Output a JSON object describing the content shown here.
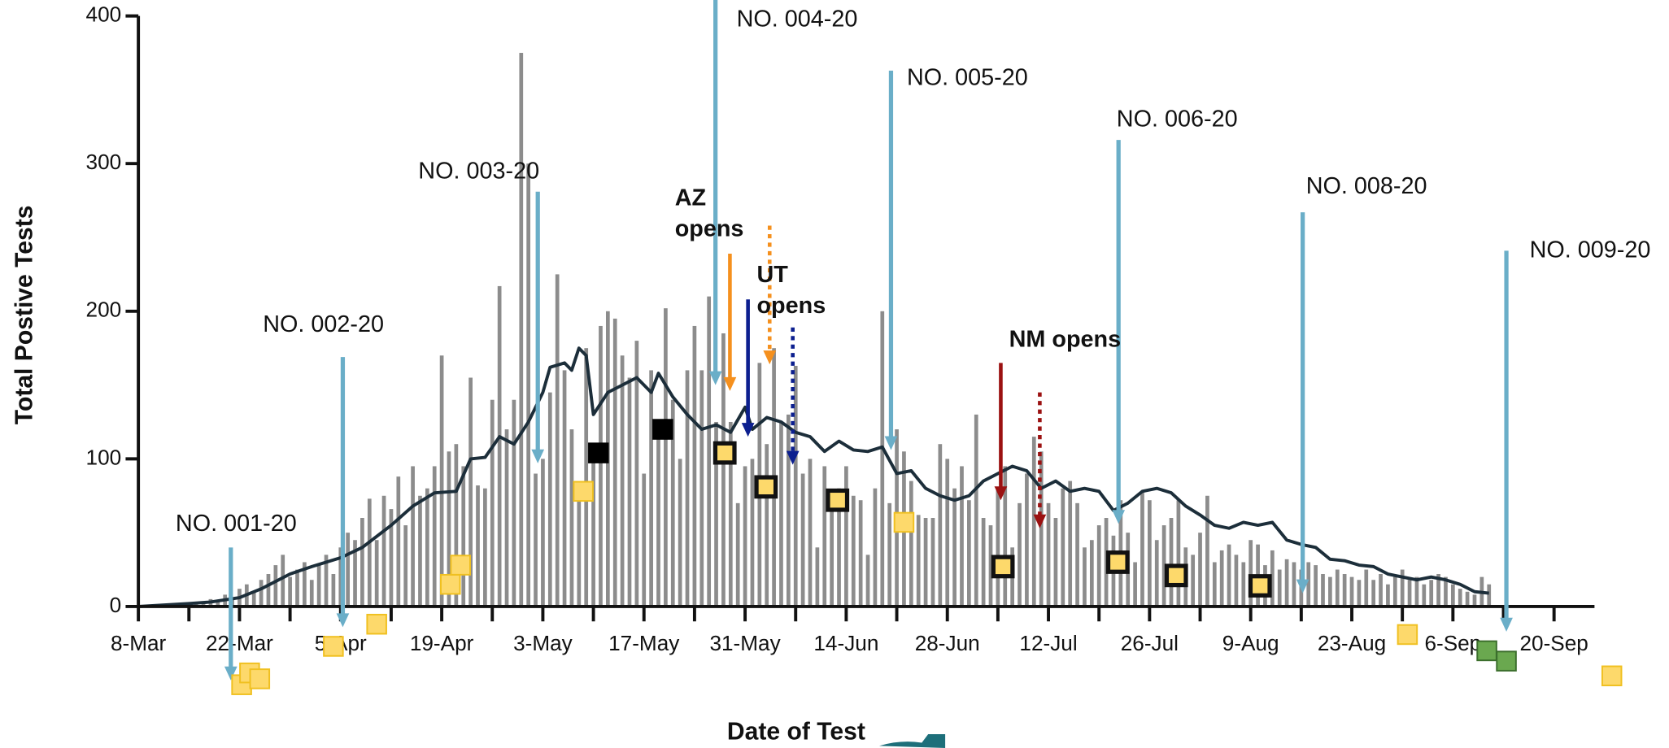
{
  "chart_data": {
    "type": "bar",
    "y_label": "Total Postive Tests",
    "x_label": "Date of Test",
    "xlim": [
      0,
      196
    ],
    "ylim": [
      0,
      400
    ],
    "yticks": [
      0,
      100,
      200,
      300,
      400
    ],
    "xticks": [
      {
        "value": 0,
        "label": "8-Mar"
      },
      {
        "value": 14,
        "label": "22-Mar"
      },
      {
        "value": 28,
        "label": "5-Apr"
      },
      {
        "value": 42,
        "label": "19-Apr"
      },
      {
        "value": 56,
        "label": "3-May"
      },
      {
        "value": 70,
        "label": "17-May"
      },
      {
        "value": 84,
        "label": "31-May"
      },
      {
        "value": 98,
        "label": "14-Jun"
      },
      {
        "value": 112,
        "label": "28-Jun"
      },
      {
        "value": 126,
        "label": "12-Jul"
      },
      {
        "value": 140,
        "label": "26-Jul"
      },
      {
        "value": 154,
        "label": "9-Aug"
      },
      {
        "value": 168,
        "label": "23-Aug"
      },
      {
        "value": 182,
        "label": "6-Sep"
      },
      {
        "value": 196,
        "label": "20-Sep"
      }
    ],
    "xminorticks": [
      7,
      21,
      35,
      49,
      63,
      77,
      91,
      105,
      119,
      133,
      147,
      161,
      175,
      189
    ],
    "bar_color": "#8c8c8c",
    "values": [
      0,
      0,
      1,
      0,
      1,
      2,
      1,
      2,
      3,
      2,
      5,
      4,
      8,
      6,
      12,
      15,
      10,
      18,
      22,
      28,
      35,
      20,
      25,
      30,
      18,
      28,
      35,
      22,
      40,
      50,
      45,
      60,
      73,
      45,
      75,
      66,
      88,
      55,
      95,
      75,
      80,
      95,
      170,
      105,
      110,
      95,
      155,
      82,
      80,
      140,
      217,
      120,
      140,
      375,
      300,
      90,
      100,
      145,
      225,
      160,
      120,
      80,
      175,
      110,
      190,
      200,
      195,
      170,
      155,
      180,
      90,
      160,
      120,
      202,
      140,
      100,
      160,
      190,
      160,
      210,
      125,
      185,
      125,
      70,
      95,
      100,
      165,
      110,
      175,
      125,
      130,
      163,
      90,
      100,
      40,
      95,
      78,
      80,
      95,
      75,
      72,
      35,
      80,
      200,
      70,
      120,
      105,
      85,
      62,
      60,
      60,
      110,
      100,
      80,
      95,
      72,
      130,
      60,
      55,
      80,
      95,
      40,
      70,
      90,
      115,
      105,
      70,
      60,
      80,
      85,
      70,
      40,
      45,
      55,
      60,
      48,
      72,
      50,
      30,
      78,
      72,
      45,
      55,
      60,
      72,
      40,
      35,
      50,
      75,
      30,
      38,
      42,
      35,
      30,
      45,
      42,
      28,
      38,
      25,
      32,
      30,
      25,
      30,
      28,
      22,
      20,
      25,
      22,
      20,
      18,
      25,
      18,
      22,
      15,
      20,
      25,
      18,
      20,
      15,
      18,
      22,
      20,
      15,
      12,
      10,
      8,
      20,
      15
    ],
    "line": {
      "color": "#1c2e3a",
      "x": [
        0,
        7,
        10,
        14,
        17,
        21,
        24,
        28,
        31,
        35,
        38,
        41,
        44,
        46,
        48,
        50,
        52,
        54,
        56,
        57,
        59,
        60,
        61,
        62,
        63,
        65,
        67,
        69,
        71,
        72,
        74,
        76,
        78,
        80,
        82,
        84,
        85,
        87,
        89,
        91,
        93,
        95,
        97,
        99,
        101,
        103,
        105,
        107,
        109,
        111,
        113,
        115,
        117,
        119,
        121,
        123,
        125,
        127,
        129,
        131,
        133,
        135,
        137,
        139,
        141,
        143,
        145,
        147,
        149,
        151,
        153,
        155,
        157,
        159,
        161,
        163,
        165,
        167,
        169,
        171,
        173,
        175,
        177,
        179,
        181,
        183,
        185,
        187
      ],
      "values": [
        0,
        2,
        3,
        6,
        12,
        22,
        27,
        33,
        40,
        55,
        68,
        77,
        78,
        100,
        101,
        115,
        110,
        125,
        145,
        162,
        165,
        160,
        175,
        170,
        130,
        145,
        150,
        155,
        145,
        158,
        142,
        130,
        120,
        123,
        118,
        135,
        120,
        128,
        125,
        118,
        115,
        105,
        112,
        106,
        105,
        108,
        90,
        92,
        80,
        75,
        72,
        75,
        85,
        90,
        95,
        92,
        80,
        85,
        78,
        80,
        78,
        65,
        70,
        78,
        80,
        77,
        68,
        62,
        55,
        53,
        57,
        55,
        57,
        45,
        42,
        40,
        32,
        31,
        28,
        27,
        22,
        20,
        18,
        20,
        18,
        15,
        10,
        9
      ]
    },
    "markers": [
      {
        "color": "#fdd96b",
        "edge": "#f0c020",
        "x": [
          14.3,
          15.4,
          16.8,
          27,
          33,
          43.2,
          44.6,
          61.6,
          106,
          175.7,
          204
        ],
        "values": [
          -53,
          -45,
          -49,
          -27,
          -12,
          15,
          28,
          78,
          57,
          -19,
          -47
        ]
      },
      {
        "color": "#000000",
        "edge": "#000000",
        "x": [
          63.7,
          72.6
        ],
        "values": [
          104,
          120
        ]
      },
      {
        "color": "#fdd96b",
        "edge": "#111111",
        "x": [
          81.2,
          86.9,
          96.8,
          119.7,
          135.6,
          143.7,
          155.3
        ],
        "values": [
          104,
          81,
          72,
          27,
          30,
          21,
          14
        ]
      },
      {
        "color": "#6aa84f",
        "edge": "#3b6e2c",
        "x": [
          186.7,
          189.4
        ],
        "values": [
          -30,
          -37
        ]
      }
    ],
    "annotations": [
      {
        "label": "NO. 001-20",
        "color": "#6aaec8",
        "arrows": [
          {
            "x": 12.8,
            "from": 40,
            "to": -50,
            "dashed": false
          }
        ]
      },
      {
        "label": "NO. 002-20",
        "color": "#6aaec8",
        "arrows": [
          {
            "x": 28.3,
            "from": 169,
            "to": -14,
            "dashed": false
          }
        ]
      },
      {
        "label": "NO. 003-20",
        "color": "#6aaec8",
        "arrows": [
          {
            "x": 55.3,
            "from": 281,
            "to": 97,
            "dashed": false
          }
        ]
      },
      {
        "label": "NO. 004-20",
        "color": "#6aaec8",
        "arrows": [
          {
            "x": 79.9,
            "from": 411,
            "to": 150,
            "dashed": false
          }
        ]
      },
      {
        "label": "NO. 005-20",
        "color": "#6aaec8",
        "arrows": [
          {
            "x": 104.2,
            "from": 363,
            "to": 106,
            "dashed": false
          }
        ]
      },
      {
        "label": "NO. 006-20",
        "color": "#6aaec8",
        "arrows": [
          {
            "x": 135.7,
            "from": 316,
            "to": 56,
            "dashed": false
          }
        ]
      },
      {
        "label": "NO. 008-20",
        "color": "#6aaec8",
        "arrows": [
          {
            "x": 161.2,
            "from": 267,
            "to": 9,
            "dashed": false
          }
        ]
      },
      {
        "label": "NO. 009-20",
        "color": "#6aaec8",
        "arrows": [
          {
            "x": 189.4,
            "from": 241,
            "to": -17,
            "dashed": false
          }
        ]
      },
      {
        "label": "AZ opens",
        "color": "#f5901e",
        "arrows": [
          {
            "x": 81.9,
            "from": 239,
            "to": 146,
            "dashed": false
          },
          {
            "x": 87.4,
            "from": 258,
            "to": 164,
            "dashed": true
          }
        ]
      },
      {
        "label": "UT opens",
        "color": "#0c1f8f",
        "arrows": [
          {
            "x": 84.4,
            "from": 208,
            "to": 115,
            "dashed": false
          },
          {
            "x": 90.6,
            "from": 189,
            "to": 96,
            "dashed": true
          }
        ]
      },
      {
        "label": "NM opens",
        "color": "#9b1111",
        "arrows": [
          {
            "x": 119.4,
            "from": 165,
            "to": 72,
            "dashed": false
          },
          {
            "x": 124.8,
            "from": 145,
            "to": 53,
            "dashed": true
          }
        ]
      }
    ]
  }
}
